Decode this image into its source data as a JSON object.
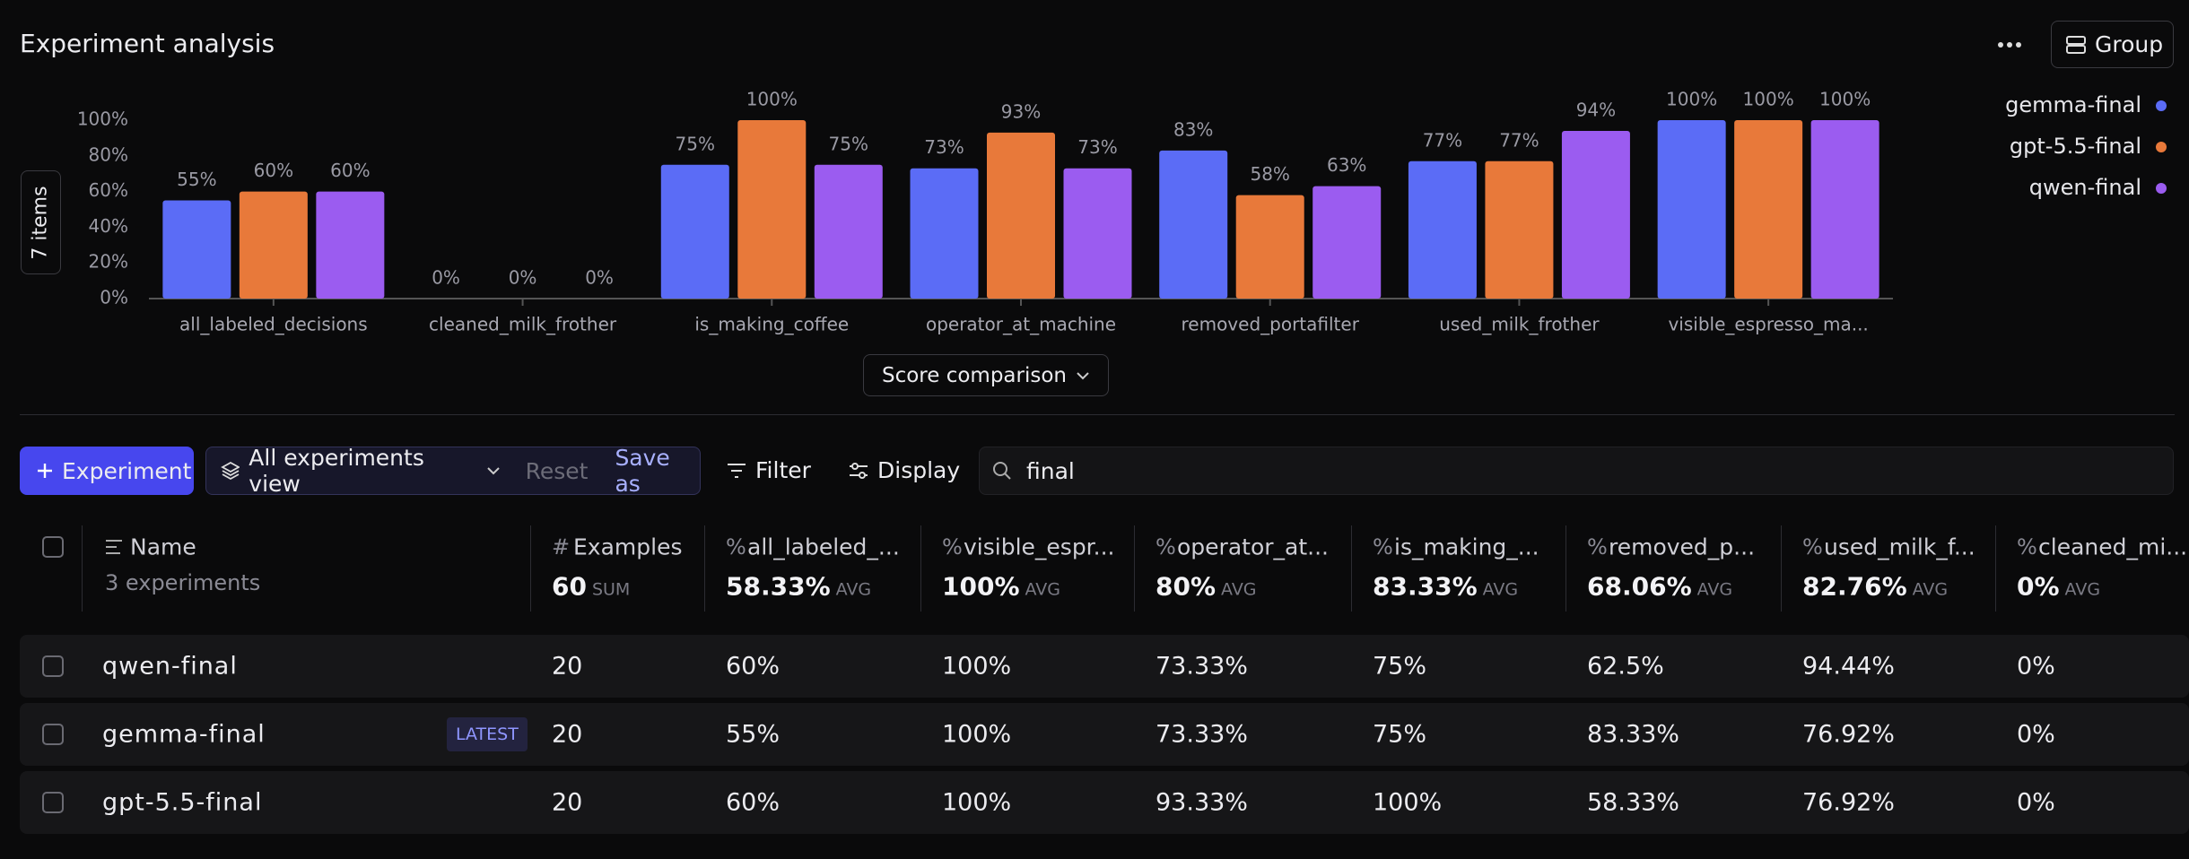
{
  "header": {
    "title": "Experiment analysis",
    "group_button": "Group"
  },
  "chart_data": {
    "type": "bar",
    "items_button": "7 items",
    "score_dropdown": "Score comparison",
    "categories": [
      "all_labeled_decisions",
      "cleaned_milk_frother",
      "is_making_coffee",
      "operator_at_machine",
      "removed_portafilter",
      "used_milk_frother",
      "visible_espresso_ma..."
    ],
    "series": [
      {
        "name": "gemma-final",
        "color": "#5b6cf6",
        "values": [
          55,
          0,
          75,
          73,
          83,
          77,
          100
        ],
        "value_labels": [
          "55%",
          "0%",
          "75%",
          "73%",
          "83%",
          "77%",
          "100%"
        ]
      },
      {
        "name": "gpt-5.5-final",
        "color": "#e8793a",
        "values": [
          60,
          0,
          100,
          93,
          58,
          77,
          100
        ],
        "value_labels": [
          "60%",
          "0%",
          "100%",
          "93%",
          "58%",
          "77%",
          "100%"
        ]
      },
      {
        "name": "qwen-final",
        "color": "#9b5cf0",
        "values": [
          60,
          0,
          75,
          73,
          63,
          94,
          100
        ],
        "value_labels": [
          "60%",
          "0%",
          "75%",
          "73%",
          "63%",
          "94%",
          "100%"
        ]
      }
    ],
    "ylim": [
      0,
      100
    ],
    "yticks": [
      {
        "value": 0,
        "label": "0%"
      },
      {
        "value": 20,
        "label": "20%"
      },
      {
        "value": 40,
        "label": "40%"
      },
      {
        "value": 60,
        "label": "60%"
      },
      {
        "value": 80,
        "label": "80%"
      },
      {
        "value": 100,
        "label": "100%"
      }
    ],
    "legend": "top-right"
  },
  "toolbar": {
    "new_button": "Experiment",
    "view": "All experiments view",
    "reset": "Reset",
    "save_as": "Save as",
    "filter": "Filter",
    "display": "Display",
    "search": "final"
  },
  "table": {
    "name_column": {
      "label": "Name",
      "summary": "3 experiments"
    },
    "columns": [
      {
        "icon": "#",
        "label": "Examples",
        "summary": "60",
        "summary_unit": "SUM"
      },
      {
        "icon": "%",
        "label": "all_labeled_...",
        "summary": "58.33%",
        "summary_unit": "AVG"
      },
      {
        "icon": "%",
        "label": "visible_espr...",
        "summary": "100%",
        "summary_unit": "AVG"
      },
      {
        "icon": "%",
        "label": "operator_at...",
        "summary": "80%",
        "summary_unit": "AVG"
      },
      {
        "icon": "%",
        "label": "is_making_...",
        "summary": "83.33%",
        "summary_unit": "AVG"
      },
      {
        "icon": "%",
        "label": "removed_p...",
        "summary": "68.06%",
        "summary_unit": "AVG"
      },
      {
        "icon": "%",
        "label": "used_milk_f...",
        "summary": "82.76%",
        "summary_unit": "AVG"
      },
      {
        "icon": "%",
        "label": "cleaned_mi...",
        "summary": "0%",
        "summary_unit": "AVG"
      }
    ],
    "rows": [
      {
        "name": "qwen-final",
        "cells": [
          "20",
          "60%",
          "100%",
          "73.33%",
          "75%",
          "62.5%",
          "94.44%",
          "0%"
        ]
      },
      {
        "name": "gemma-final",
        "badge": "LATEST",
        "cells": [
          "20",
          "55%",
          "100%",
          "73.33%",
          "75%",
          "83.33%",
          "76.92%",
          "0%"
        ]
      },
      {
        "name": "gpt-5.5-final",
        "cells": [
          "20",
          "60%",
          "100%",
          "93.33%",
          "100%",
          "58.33%",
          "76.92%",
          "0%"
        ]
      }
    ]
  }
}
